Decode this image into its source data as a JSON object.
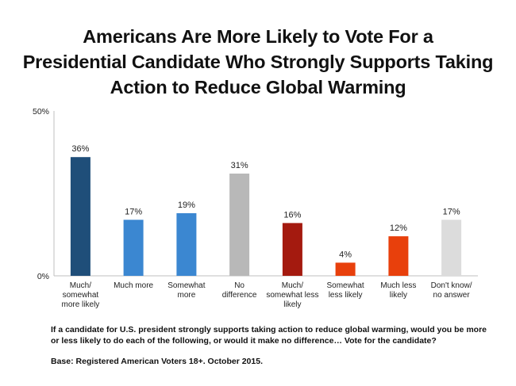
{
  "chart_data": {
    "type": "bar",
    "title_lines": [
      "Americans Are More Likely to Vote For a",
      "Presidential Candidate Who Strongly Supports Taking",
      "Action to Reduce Global Warming"
    ],
    "categories": [
      [
        "Much/",
        "somewhat",
        "more likely"
      ],
      [
        "Much more"
      ],
      [
        "Somewhat",
        "more"
      ],
      [
        "No",
        "difference"
      ],
      [
        "Much/",
        "somewhat less",
        "likely"
      ],
      [
        "Somewhat",
        "less likely"
      ],
      [
        "Much less",
        "likely"
      ],
      [
        "Don't know/",
        "no answer"
      ]
    ],
    "values": [
      36,
      17,
      19,
      31,
      16,
      4,
      12,
      17
    ],
    "value_labels": [
      "36%",
      "17%",
      "19%",
      "31%",
      "16%",
      "4%",
      "12%",
      "17%"
    ],
    "colors": [
      "#1f4e79",
      "#3b87d1",
      "#3b87d1",
      "#b8b8b8",
      "#a41a0f",
      "#e8400c",
      "#e8400c",
      "#dcdcdc"
    ],
    "ylim": [
      0,
      50
    ],
    "y_ticks": [
      "50%",
      "0%"
    ],
    "grid": false
  },
  "footnote": {
    "question": "If a candidate for U.S. president strongly supports taking action to reduce global warming, would you be more or less likely to do each of the following, or would it make no difference… Vote for the candidate?",
    "base": "Base: Registered American Voters 18+. October 2015."
  }
}
